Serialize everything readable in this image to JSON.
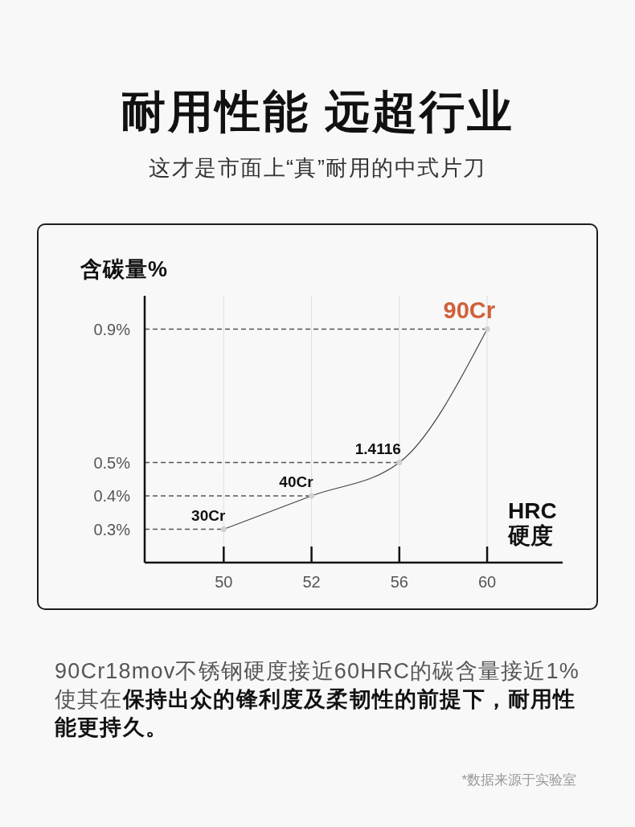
{
  "chart_data": {
    "type": "line",
    "title": "耐用性能 远超行业",
    "subtitle": "这才是市面上“真”耐用的中式片刀",
    "ylabel": "含碳量%",
    "xlabel": "HRC\n硬度",
    "categories": [
      "50",
      "52",
      "56",
      "60"
    ],
    "series": [
      {
        "color": "#444444",
        "values": [
          0.3,
          0.4,
          0.5,
          0.9
        ]
      }
    ],
    "ylim": [
      0.2,
      1.0
    ],
    "yticks": [
      {
        "value": 0.3,
        "label": "0.3%"
      },
      {
        "value": 0.4,
        "label": "0.4%"
      },
      {
        "value": 0.5,
        "label": "0.5%"
      },
      {
        "value": 0.9,
        "label": "0.9%"
      }
    ],
    "grid": "x",
    "marker": "circle",
    "line_style": "solid",
    "ref_lines": [
      {
        "axis": "y",
        "value": 0.3,
        "line_style": "dashed",
        "color": "#555555"
      },
      {
        "axis": "y",
        "value": 0.4,
        "line_style": "dashed",
        "color": "#555555"
      },
      {
        "axis": "y",
        "value": 0.5,
        "line_style": "dashed",
        "color": "#555555"
      },
      {
        "axis": "y",
        "value": 0.9,
        "line_style": "dashed",
        "color": "#555555"
      }
    ],
    "annotations": [
      {
        "text": "30Cr",
        "x": "50",
        "y": 0.3
      },
      {
        "text": "40Cr",
        "x": "52",
        "y": 0.4
      },
      {
        "text": "1.4116",
        "x": "56",
        "y": 0.5
      },
      {
        "text": "90Cr",
        "x": "60",
        "y": 0.9
      },
      "90Cr18mov不锈钢硬度接近60HRC的碳含量接近1%",
      "使其在",
      "保持出众的锋利度及柔韧性的前提下，耐用性",
      "能更持久。",
      "*数据来源于实验室"
    ]
  }
}
